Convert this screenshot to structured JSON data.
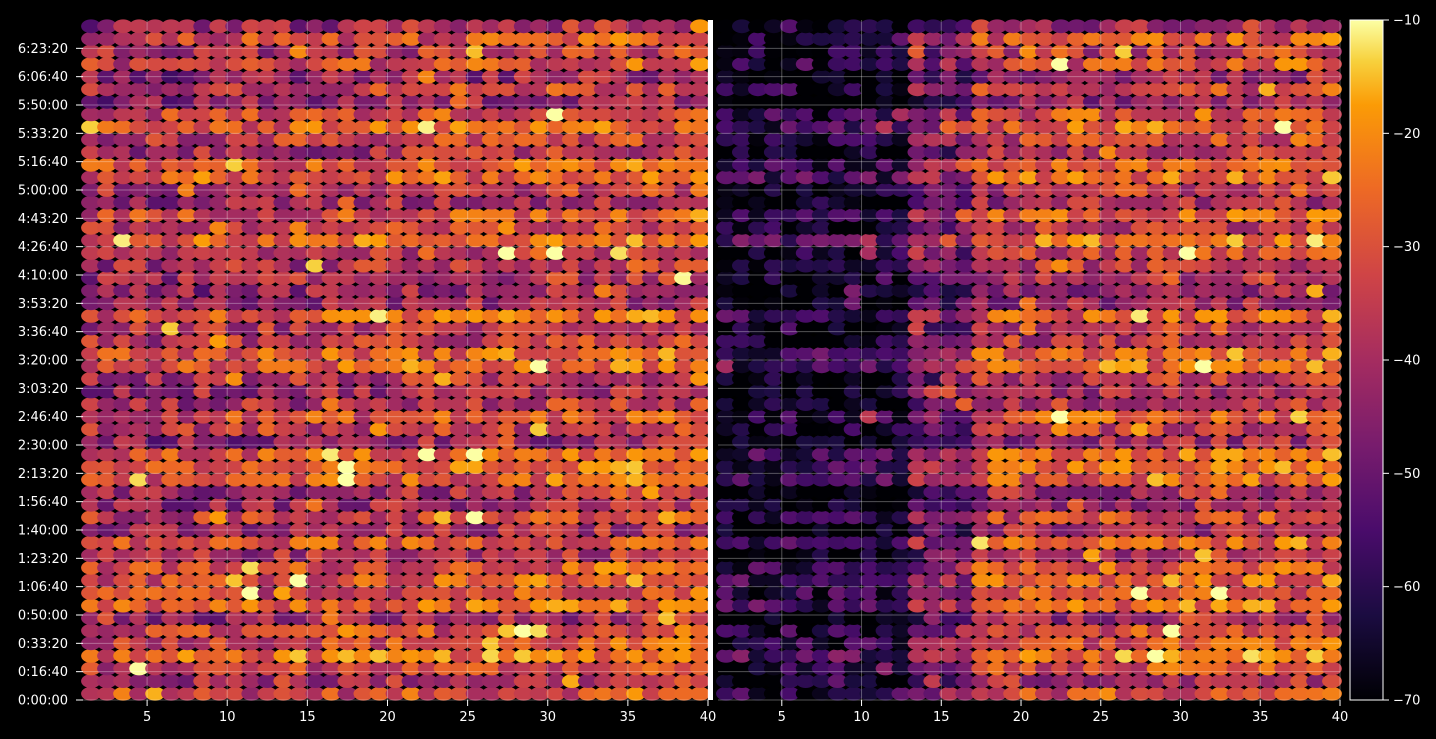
{
  "chart_data": {
    "type": "heatmap",
    "title": "",
    "panels": [
      {
        "name": "left",
        "x_ticks": [
          5,
          10,
          15,
          20,
          25,
          30,
          35,
          40
        ],
        "xlim": [
          1,
          40
        ]
      },
      {
        "name": "right",
        "x_ticks": [
          5,
          10,
          15,
          20,
          25,
          30,
          35,
          40
        ],
        "xlim": [
          1,
          40
        ]
      }
    ],
    "y_tick_labels": [
      "0:00:00",
      "0:16:40",
      "0:33:20",
      "0:50:00",
      "1:06:40",
      "1:23:20",
      "1:40:00",
      "1:56:40",
      "2:13:20",
      "2:30:00",
      "2:46:40",
      "3:03:20",
      "3:20:00",
      "3:36:40",
      "3:53:20",
      "4:10:00",
      "4:26:40",
      "4:43:20",
      "5:00:00",
      "5:16:40",
      "5:33:20",
      "5:50:00",
      "6:06:40",
      "6:23:20"
    ],
    "ylim_seconds": [
      0,
      24000
    ],
    "colorbar": {
      "ticks": [
        "−10",
        "−20",
        "−30",
        "−40",
        "−50",
        "−60",
        "−70"
      ],
      "range": [
        -70,
        -10
      ],
      "colormap": "inferno"
    },
    "grid": true,
    "background": "#000000"
  }
}
